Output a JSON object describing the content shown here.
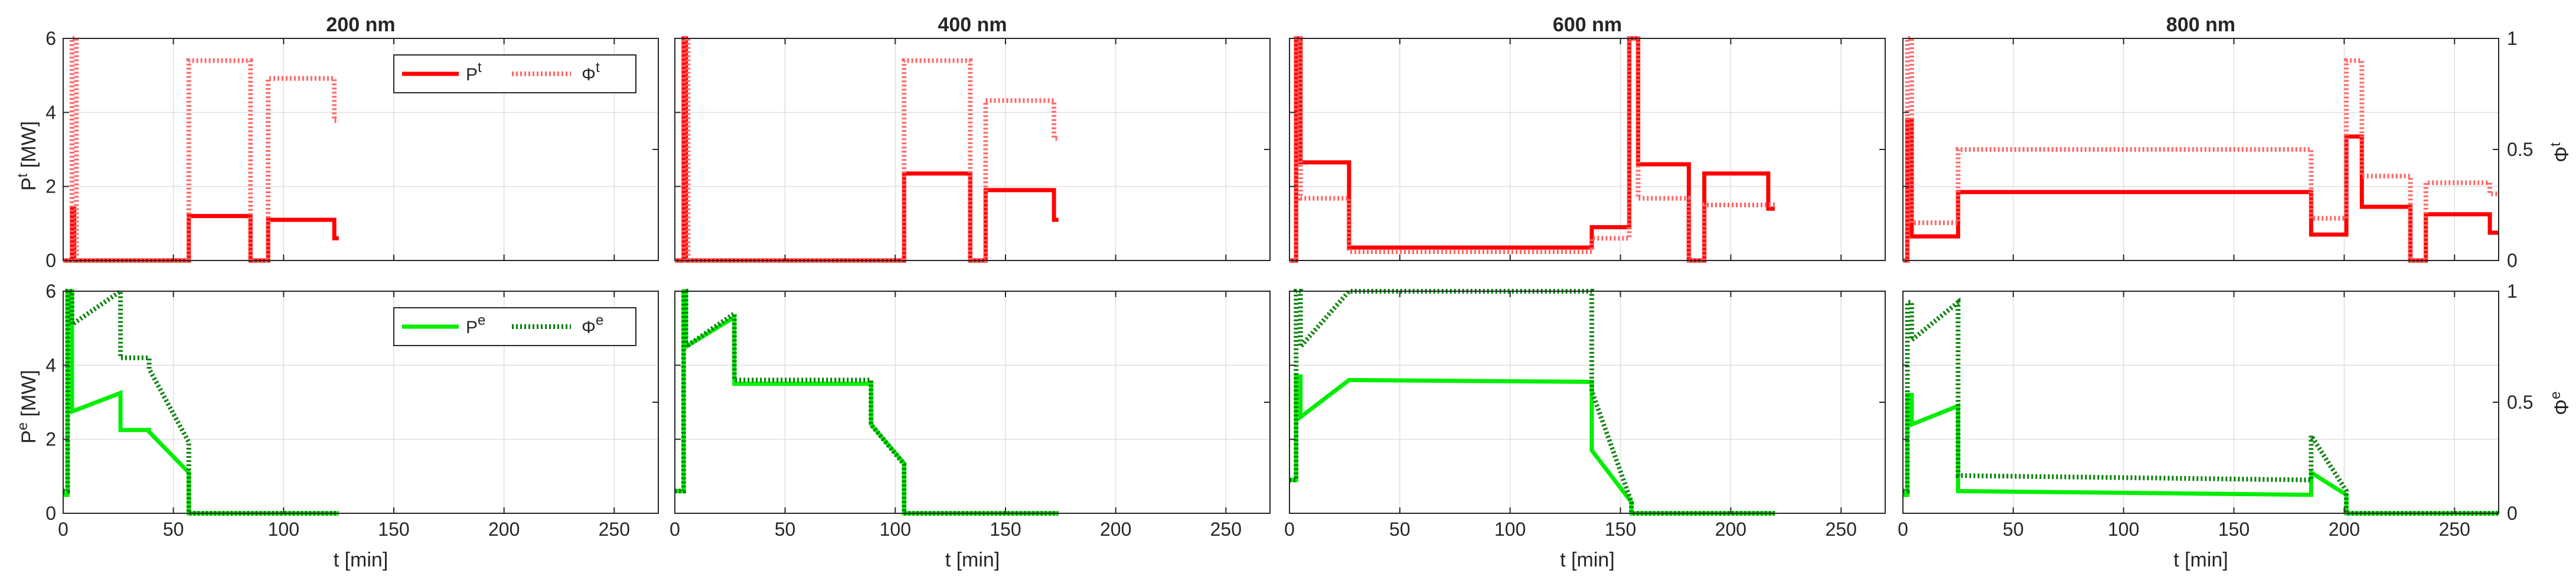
{
  "figure": {
    "columns": [
      "200 nm",
      "400 nm",
      "600 nm",
      "800 nm"
    ],
    "xlabel": "t [min]",
    "x_ticks": [
      0,
      50,
      100,
      150,
      200,
      250
    ],
    "xlim": [
      0,
      270
    ],
    "left_ticks": [
      0,
      2,
      4,
      6
    ],
    "right_ticks": [
      0,
      0.5,
      1
    ],
    "rows": [
      {
        "id": "thermal",
        "ylabel": "P",
        "ylabel_sup": "t",
        "ylabel_unit": " [MW]",
        "right_label": "Φ",
        "right_label_sup": "t",
        "color": "#ff0000",
        "legend": {
          "power": "P",
          "power_sup": "t",
          "fraction": "Φ",
          "fraction_sup": "t"
        }
      },
      {
        "id": "electric",
        "ylabel": "P",
        "ylabel_sup": "e",
        "ylabel_unit": " [MW]",
        "right_label": "Φ",
        "right_label_sup": "e",
        "color": "#00ee00",
        "legend": {
          "power": "P",
          "power_sup": "e",
          "fraction": "Φ",
          "fraction_sup": "e"
        }
      }
    ]
  },
  "chart_data": [
    {
      "type": "line",
      "panel": "200 nm thermal",
      "title": "200 nm",
      "xlabel": "",
      "ylabel": "Pt [MW]",
      "y2label": "Φt",
      "xlim": [
        0,
        270
      ],
      "ylim": [
        0,
        6
      ],
      "y2lim": [
        0,
        1
      ],
      "grid": true,
      "legend": "top-right",
      "series": [
        {
          "name": "Pt",
          "axis": "left",
          "style": "solid",
          "color": "#ff0000",
          "x": [
            0,
            4,
            4,
            5,
            5,
            57,
            57,
            85,
            85,
            93,
            93,
            123,
            123,
            125
          ],
          "y": [
            0,
            0,
            1.4,
            1.4,
            0,
            0,
            1.2,
            1.2,
            0,
            0,
            1.1,
            1.1,
            0.6,
            0.6
          ]
        },
        {
          "name": "Φt",
          "axis": "right",
          "style": "dotted",
          "color": "#ff6666",
          "x": [
            0,
            4,
            4,
            6,
            6,
            57,
            57,
            85,
            85,
            93,
            93,
            123,
            123,
            125
          ],
          "y": [
            0,
            0,
            1,
            1,
            0,
            0,
            0.9,
            0.9,
            0,
            0,
            0.82,
            0.82,
            0.63,
            0.63
          ]
        }
      ]
    },
    {
      "type": "line",
      "panel": "400 nm thermal",
      "title": "400 nm",
      "xlabel": "",
      "ylabel": "",
      "y2label": "",
      "xlim": [
        0,
        270
      ],
      "ylim": [
        0,
        6
      ],
      "y2lim": [
        0,
        1
      ],
      "grid": true,
      "series": [
        {
          "name": "Pt",
          "axis": "left",
          "style": "solid",
          "color": "#ff0000",
          "x": [
            0,
            4,
            4,
            5,
            5,
            104,
            104,
            134,
            134,
            141,
            141,
            172,
            172,
            174
          ],
          "y": [
            0,
            0,
            6,
            6,
            0,
            0,
            2.35,
            2.35,
            0,
            0,
            1.9,
            1.9,
            1.1,
            1.1
          ]
        },
        {
          "name": "Φt",
          "axis": "right",
          "style": "dotted",
          "color": "#ff6666",
          "x": [
            0,
            4,
            4,
            6,
            6,
            104,
            104,
            134,
            134,
            141,
            141,
            172,
            172,
            174
          ],
          "y": [
            0,
            0,
            1,
            1,
            0,
            0,
            0.9,
            0.9,
            0,
            0,
            0.72,
            0.72,
            0.55,
            0.55
          ]
        }
      ]
    },
    {
      "type": "line",
      "panel": "600 nm thermal",
      "title": "600 nm",
      "xlabel": "",
      "ylabel": "",
      "y2label": "",
      "xlim": [
        0,
        270
      ],
      "ylim": [
        0,
        6
      ],
      "y2lim": [
        0,
        1
      ],
      "grid": true,
      "series": [
        {
          "name": "Pt",
          "axis": "left",
          "style": "solid",
          "color": "#ff0000",
          "x": [
            0,
            3,
            3,
            5,
            5,
            27,
            27,
            137,
            137,
            154,
            154,
            158,
            158,
            181,
            181,
            188,
            188,
            217,
            217,
            220
          ],
          "y": [
            0,
            0,
            6,
            6,
            2.65,
            2.65,
            0.35,
            0.35,
            0.9,
            0.9,
            6,
            6,
            2.6,
            2.6,
            0,
            0,
            2.35,
            2.35,
            1.4,
            1.4
          ]
        },
        {
          "name": "Φt",
          "axis": "right",
          "style": "dotted",
          "color": "#ff6666",
          "x": [
            0,
            3,
            3,
            5,
            5,
            27,
            27,
            137,
            137,
            154,
            154,
            158,
            158,
            181,
            181,
            188,
            188,
            217,
            217,
            220
          ],
          "y": [
            0,
            0,
            1,
            1,
            0.28,
            0.28,
            0.04,
            0.04,
            0.1,
            0.1,
            1,
            1,
            0.28,
            0.28,
            0,
            0,
            0.25,
            0.25,
            0.25,
            0.25
          ]
        }
      ]
    },
    {
      "type": "line",
      "panel": "800 nm thermal",
      "title": "800 nm",
      "xlabel": "",
      "ylabel": "",
      "y2label": "Φt",
      "xlim": [
        0,
        270
      ],
      "ylim": [
        0,
        6
      ],
      "y2lim": [
        0,
        1
      ],
      "grid": true,
      "series": [
        {
          "name": "Pt",
          "axis": "left",
          "style": "solid",
          "color": "#ff0000",
          "x": [
            0,
            2,
            2,
            4,
            4,
            25,
            25,
            185,
            185,
            201,
            201,
            208,
            208,
            230,
            230,
            237,
            237,
            266,
            266,
            270
          ],
          "y": [
            0,
            0,
            3.8,
            3.8,
            0.65,
            0.65,
            1.85,
            1.85,
            0.7,
            0.7,
            3.35,
            3.35,
            1.45,
            1.45,
            0,
            0,
            1.25,
            1.25,
            0.75,
            0.75
          ]
        },
        {
          "name": "Φt",
          "axis": "right",
          "style": "dotted",
          "color": "#ff6666",
          "x": [
            0,
            2,
            2,
            4,
            4,
            25,
            25,
            185,
            185,
            201,
            201,
            208,
            208,
            230,
            230,
            237,
            237,
            266,
            266,
            270
          ],
          "y": [
            0,
            0,
            1,
            1,
            0.17,
            0.17,
            0.5,
            0.5,
            0.19,
            0.19,
            0.9,
            0.9,
            0.38,
            0.38,
            0,
            0,
            0.35,
            0.35,
            0.3,
            0.3
          ]
        }
      ]
    },
    {
      "type": "line",
      "panel": "200 nm electric",
      "title": "",
      "xlabel": "t [min]",
      "ylabel": "Pe [MW]",
      "y2label": "Φe",
      "xlim": [
        0,
        270
      ],
      "ylim": [
        0,
        6
      ],
      "y2lim": [
        0,
        1
      ],
      "grid": true,
      "legend": "top-right",
      "series": [
        {
          "name": "Pe",
          "axis": "left",
          "style": "solid",
          "color": "#00ee00",
          "x": [
            0,
            2,
            2,
            4,
            4,
            26,
            26,
            39,
            39,
            57,
            57,
            125
          ],
          "y": [
            0.5,
            0.5,
            6,
            6,
            2.75,
            3.25,
            2.25,
            2.25,
            2.2,
            1.1,
            0,
            0
          ]
        },
        {
          "name": "Φe",
          "axis": "right",
          "style": "dotted",
          "color": "#008000",
          "x": [
            0,
            2,
            2,
            4,
            4,
            26,
            26,
            39,
            39,
            57,
            57,
            125
          ],
          "y": [
            0.1,
            0.1,
            1,
            1,
            0.85,
            1.0,
            0.7,
            0.7,
            0.65,
            0.32,
            0,
            0
          ]
        }
      ]
    },
    {
      "type": "line",
      "panel": "400 nm electric",
      "title": "",
      "xlabel": "t [min]",
      "ylabel": "",
      "y2label": "",
      "xlim": [
        0,
        270
      ],
      "ylim": [
        0,
        6
      ],
      "y2lim": [
        0,
        1
      ],
      "grid": true,
      "series": [
        {
          "name": "Pe",
          "axis": "left",
          "style": "solid",
          "color": "#00ee00",
          "x": [
            0,
            4,
            4,
            5,
            5,
            27,
            27,
            89,
            89,
            104,
            104,
            174
          ],
          "y": [
            0.6,
            0.6,
            6,
            6,
            4.5,
            5.3,
            3.5,
            3.5,
            2.4,
            1.35,
            0,
            0
          ]
        },
        {
          "name": "Φe",
          "axis": "right",
          "style": "dotted",
          "color": "#008000",
          "x": [
            0,
            4,
            4,
            5,
            5,
            27,
            27,
            89,
            89,
            104,
            104,
            174
          ],
          "y": [
            0.1,
            0.1,
            1,
            1,
            0.75,
            0.9,
            0.6,
            0.6,
            0.4,
            0.22,
            0,
            0
          ]
        }
      ]
    },
    {
      "type": "line",
      "panel": "600 nm electric",
      "title": "",
      "xlabel": "t [min]",
      "ylabel": "",
      "y2label": "",
      "xlim": [
        0,
        270
      ],
      "ylim": [
        0,
        6
      ],
      "y2lim": [
        0,
        1
      ],
      "grid": true,
      "series": [
        {
          "name": "Pe",
          "axis": "left",
          "style": "solid",
          "color": "#00ee00",
          "x": [
            0,
            3,
            3,
            5,
            5,
            27,
            137,
            137,
            155,
            155,
            220
          ],
          "y": [
            0.9,
            0.9,
            3.7,
            3.7,
            2.6,
            3.6,
            3.55,
            1.7,
            0.3,
            0,
            0
          ]
        },
        {
          "name": "Φe",
          "axis": "right",
          "style": "dotted",
          "color": "#008000",
          "x": [
            0,
            3,
            3,
            5,
            5,
            27,
            137,
            137,
            155,
            155,
            220
          ],
          "y": [
            0.15,
            0.15,
            1,
            1,
            0.75,
            1,
            1,
            0.55,
            0.05,
            0,
            0
          ]
        }
      ]
    },
    {
      "type": "line",
      "panel": "800 nm electric",
      "title": "",
      "xlabel": "t [min]",
      "ylabel": "",
      "y2label": "Φe",
      "xlim": [
        0,
        270
      ],
      "ylim": [
        0,
        6
      ],
      "y2lim": [
        0,
        1
      ],
      "grid": true,
      "series": [
        {
          "name": "Pe",
          "axis": "left",
          "style": "solid",
          "color": "#00ee00",
          "x": [
            0,
            2,
            2,
            4,
            4,
            25,
            25,
            185,
            185,
            201,
            201,
            270
          ],
          "y": [
            0.5,
            0.5,
            3.2,
            3.2,
            2.4,
            2.9,
            0.6,
            0.5,
            1.1,
            0.5,
            0,
            0
          ]
        },
        {
          "name": "Φe",
          "axis": "right",
          "style": "dotted",
          "color": "#008000",
          "x": [
            0,
            2,
            2,
            4,
            4,
            25,
            25,
            185,
            185,
            201,
            201,
            270
          ],
          "y": [
            0.1,
            0.1,
            0.95,
            0.95,
            0.78,
            0.95,
            0.17,
            0.15,
            0.35,
            0.1,
            0,
            0
          ]
        }
      ]
    }
  ]
}
